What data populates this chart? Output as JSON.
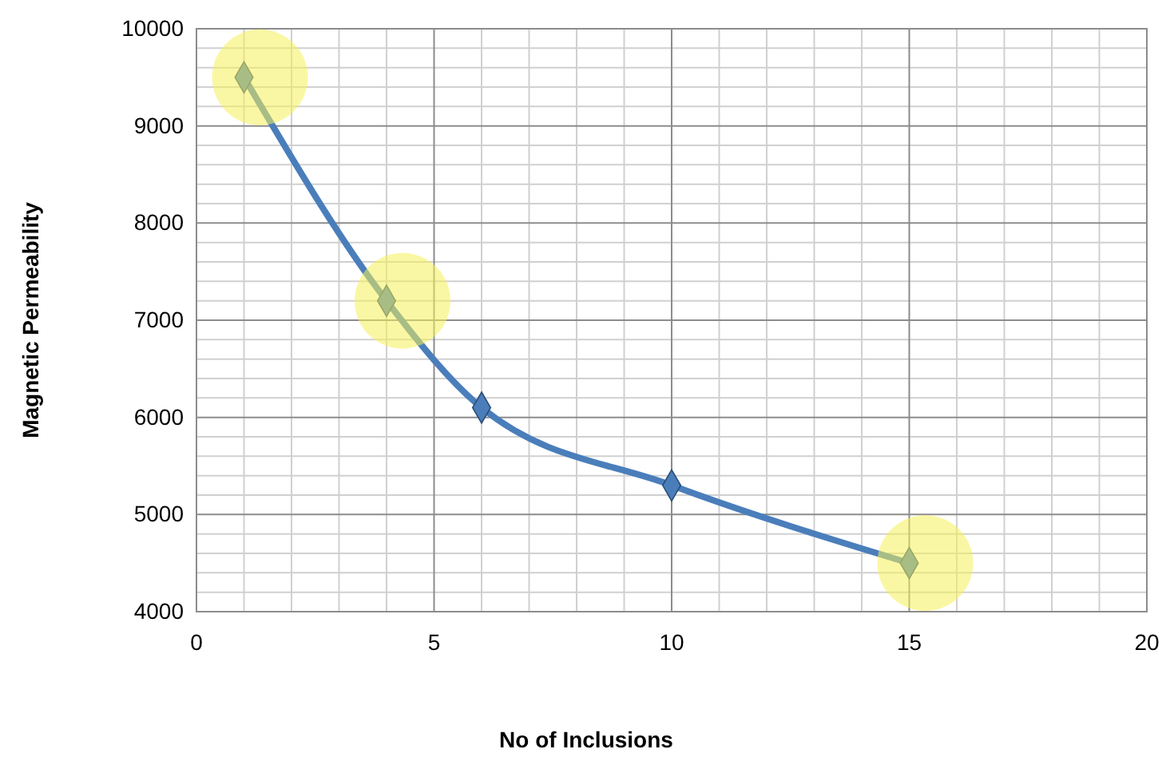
{
  "chart_data": {
    "type": "line",
    "xlabel": "No of Inclusions",
    "ylabel": "Magnetic Permeability",
    "x": [
      1,
      4,
      6,
      10,
      15
    ],
    "series": [
      {
        "color": "#4a7ebb",
        "values": [
          9500,
          7200,
          6100,
          5300,
          4500
        ]
      }
    ],
    "xlim": [
      0,
      20
    ],
    "xticks": [
      0,
      5,
      10,
      15,
      20
    ],
    "ylim": [
      4000,
      10000
    ],
    "yticks": [
      4000,
      5000,
      6000,
      7000,
      8000,
      9000,
      10000
    ],
    "grid": true,
    "marker": "diamond"
  }
}
